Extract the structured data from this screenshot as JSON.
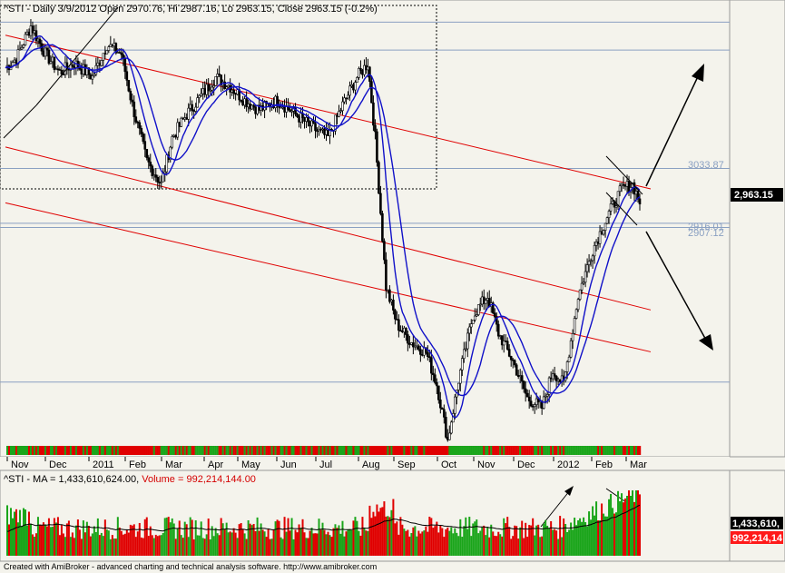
{
  "header": {
    "price_line": "^STI - Daily 3/9/2012 Open 2970.76, Hi 2987.16, Lo 2963.15, Close 2963.15 (-0.2%)",
    "volume_ma_label": "^STI - MA = 1,433,610,624.00, ",
    "volume_label": "Volume = 992,214,144.00"
  },
  "price_scale": {
    "last_price": "2,963.15"
  },
  "volume_scale": {
    "ma_tag": "1,433,610,",
    "volume_tag": "992,214,14"
  },
  "levels": [
    {
      "label": "3033.87",
      "value": 3033.87
    },
    {
      "label": "2916.01",
      "value": 2916.01
    },
    {
      "label": "2907.12",
      "value": 2907.12
    }
  ],
  "footer": {
    "credit": "Created with AmiBroker - advanced charting and technical analysis software. http://www.amibroker.com"
  },
  "colors": {
    "channel": "#e00000",
    "ma": "#1010c8",
    "level_line": "#8aa0c2",
    "up_volume": "#1aa51a",
    "down_volume": "#e00000",
    "strip_up": "#1aa51a",
    "strip_down": "#e00000"
  },
  "chart_data": {
    "type": "candlestick",
    "symbol": "^STI",
    "interval": "Daily",
    "x_tick_labels": [
      "Nov",
      "Dec",
      "2011",
      "Feb",
      "Mar",
      "Apr",
      "May",
      "Jun",
      "Jul",
      "Aug",
      "Sep",
      "Oct",
      "Nov",
      "Dec",
      "2012",
      "Feb",
      "Mar"
    ],
    "last_bar": {
      "date": "3/9/2012",
      "open": 2970.76,
      "high": 2987.16,
      "low": 2963.15,
      "close": 2963.15,
      "change_pct": -0.2
    },
    "approx_close_path": [
      [
        0,
        3250
      ],
      [
        6,
        3270
      ],
      [
        14,
        3340
      ],
      [
        22,
        3280
      ],
      [
        30,
        3240
      ],
      [
        38,
        3260
      ],
      [
        48,
        3230
      ],
      [
        56,
        3300
      ],
      [
        64,
        3280
      ],
      [
        70,
        3170
      ],
      [
        78,
        3050
      ],
      [
        86,
        3000
      ],
      [
        92,
        3100
      ],
      [
        100,
        3150
      ],
      [
        108,
        3190
      ],
      [
        116,
        3230
      ],
      [
        124,
        3210
      ],
      [
        132,
        3180
      ],
      [
        140,
        3160
      ],
      [
        150,
        3180
      ],
      [
        160,
        3150
      ],
      [
        170,
        3120
      ],
      [
        178,
        3100
      ],
      [
        186,
        3170
      ],
      [
        194,
        3230
      ],
      [
        200,
        3260
      ],
      [
        204,
        3100
      ],
      [
        210,
        2780
      ],
      [
        216,
        2700
      ],
      [
        224,
        2660
      ],
      [
        232,
        2640
      ],
      [
        238,
        2570
      ],
      [
        244,
        2450
      ],
      [
        250,
        2580
      ],
      [
        258,
        2720
      ],
      [
        266,
        2760
      ],
      [
        272,
        2680
      ],
      [
        280,
        2620
      ],
      [
        288,
        2540
      ],
      [
        296,
        2520
      ],
      [
        302,
        2600
      ],
      [
        308,
        2570
      ],
      [
        316,
        2760
      ],
      [
        324,
        2860
      ],
      [
        332,
        2930
      ],
      [
        340,
        2990
      ],
      [
        346,
        3000
      ],
      [
        350,
        2963
      ]
    ],
    "trend_channel": [
      {
        "name": "upper",
        "p1": [
          0,
          3320
        ],
        "p2": [
          356,
          2990
        ]
      },
      {
        "name": "middle",
        "p1": [
          0,
          3080
        ],
        "p2": [
          356,
          2730
        ]
      },
      {
        "name": "lower",
        "p1": [
          0,
          2960
        ],
        "p2": [
          356,
          2640
        ]
      }
    ],
    "volume_moving_average_last": 1433610624,
    "volume_last": 992214144,
    "ylim": [
      2440,
      3380
    ]
  }
}
